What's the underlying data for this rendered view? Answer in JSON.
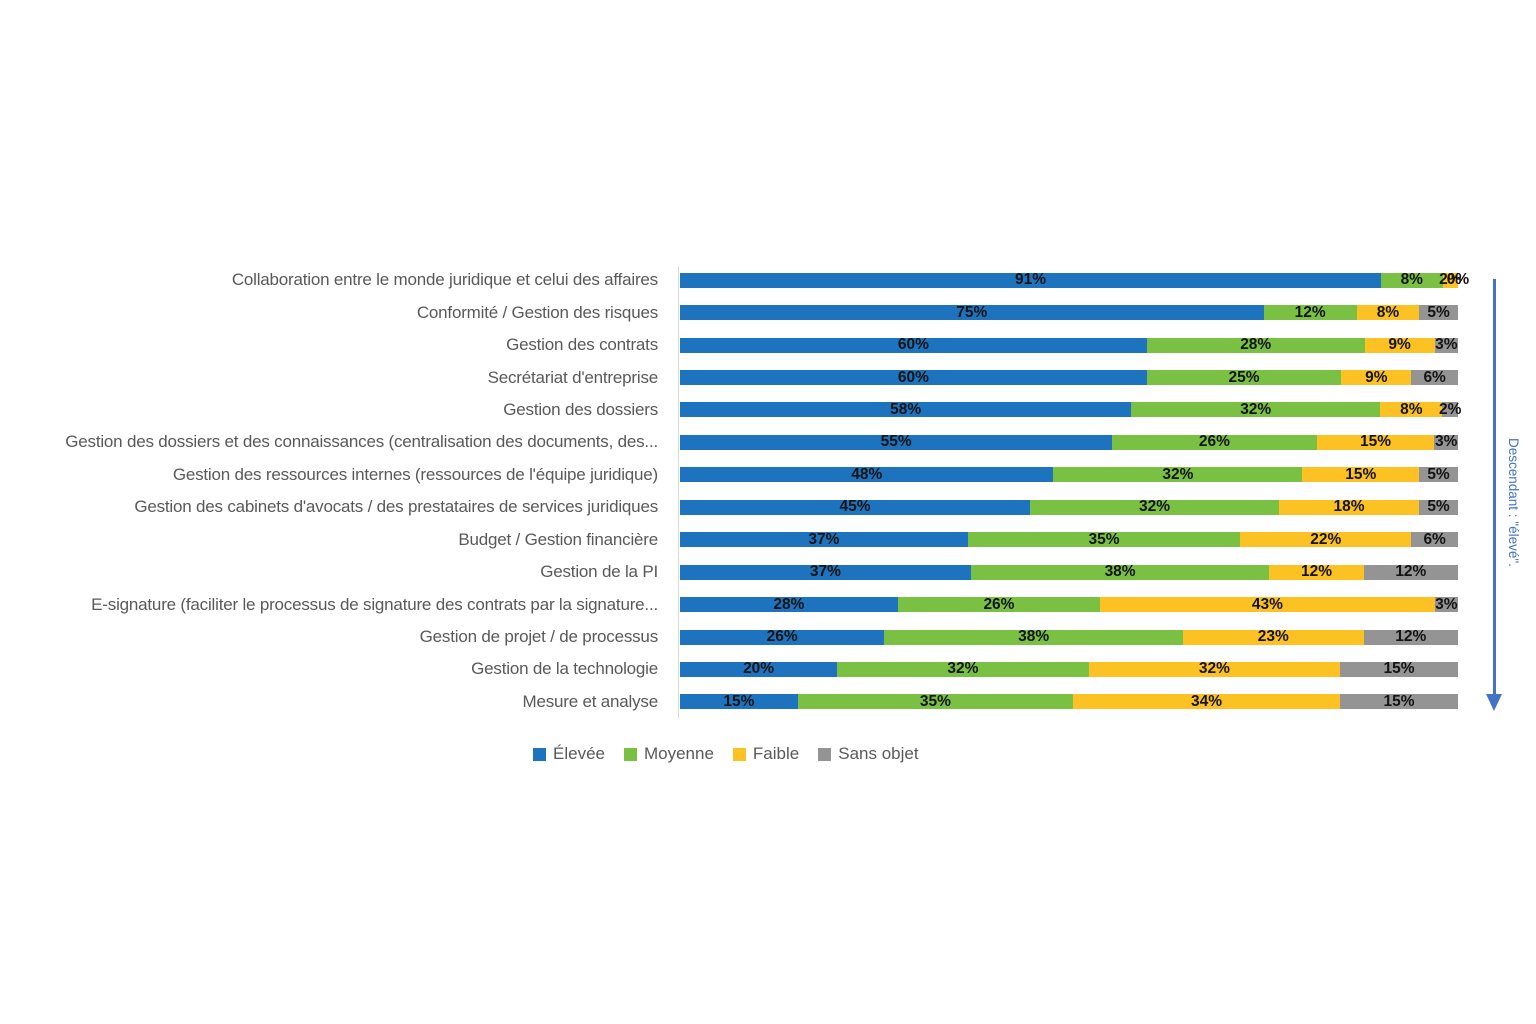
{
  "chart_data": {
    "type": "bar",
    "orientation": "horizontal-stacked-100",
    "value_suffix": "%",
    "grid": false,
    "legend_position": "bottom",
    "categories": [
      "Collaboration entre le monde juridique et celui des affaires",
      "Conformité / Gestion des risques",
      "Gestion des contrats",
      "Secrétariat d'entreprise",
      "Gestion des dossiers",
      "Gestion des dossiers et des connaissances (centralisation des documents, des...",
      "Gestion des ressources internes (ressources de l'équipe juridique)",
      "Gestion des cabinets d'avocats / des prestataires de services juridiques",
      "Budget / Gestion financière",
      "Gestion de la PI",
      "E-signature (faciliter le processus de signature des contrats par la signature...",
      "Gestion de projet / de processus",
      "Gestion de la technologie",
      "Mesure et analyse"
    ],
    "series": [
      {
        "name": "Élevée",
        "key": "elevee",
        "color": "#1E73BE",
        "values": [
          91,
          75,
          60,
          60,
          58,
          55,
          48,
          45,
          37,
          37,
          28,
          26,
          20,
          15
        ]
      },
      {
        "name": "Moyenne",
        "key": "moyenne",
        "color": "#7AC143",
        "values": [
          8,
          12,
          28,
          25,
          32,
          26,
          32,
          32,
          35,
          38,
          26,
          38,
          32,
          35
        ]
      },
      {
        "name": "Faible",
        "key": "faible",
        "color": "#FCC224",
        "values": [
          2,
          8,
          9,
          9,
          8,
          15,
          15,
          18,
          22,
          12,
          43,
          23,
          32,
          34
        ]
      },
      {
        "name": "Sans objet",
        "key": "sans-objet",
        "color": "#949494",
        "values": [
          0,
          5,
          3,
          6,
          2,
          3,
          5,
          5,
          6,
          12,
          3,
          12,
          15,
          15
        ]
      }
    ],
    "annotation": {
      "text": "Descendant : \"élevé\".",
      "direction": "down",
      "color": "#4472C4"
    },
    "axis_line_color": "#D9D9D9"
  }
}
